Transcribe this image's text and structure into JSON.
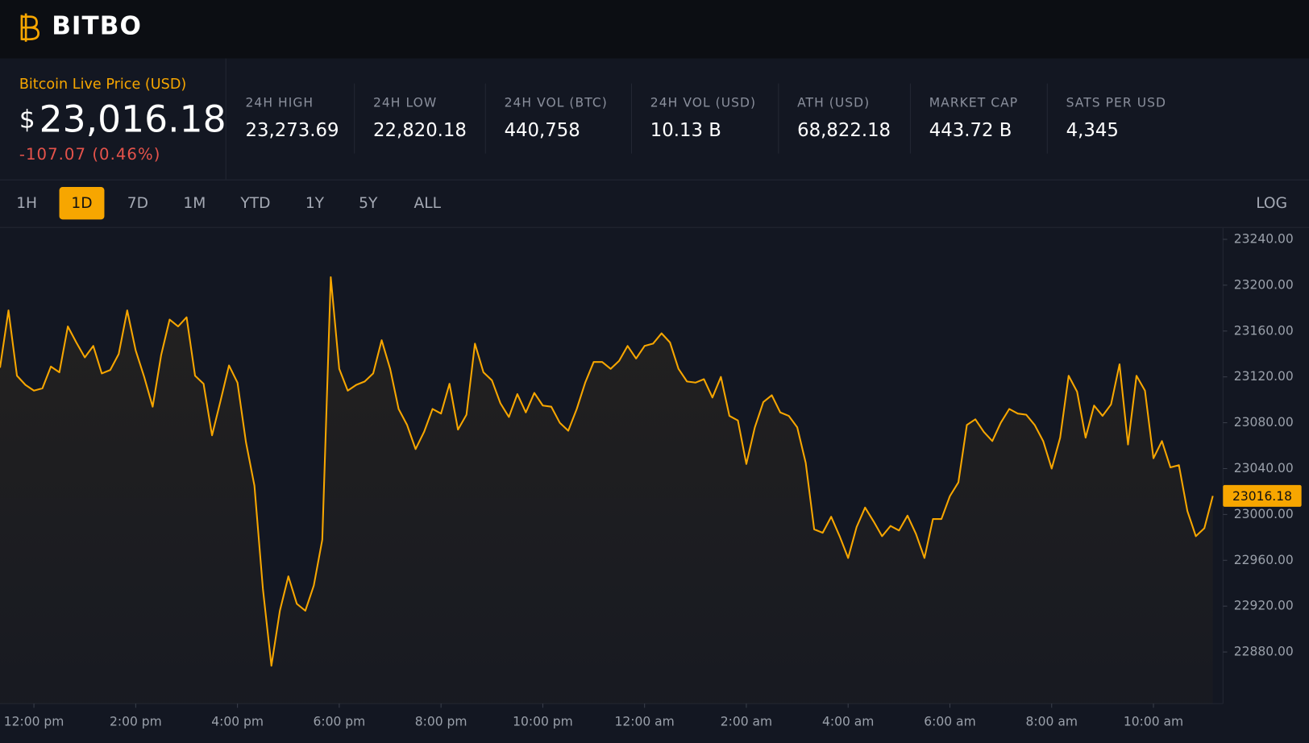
{
  "header": {
    "logo": "BITBO"
  },
  "price": {
    "label": "Bitcoin Live Price (USD)",
    "currency": "$",
    "value": "23,016.18",
    "change": "-107.07 (0.46%)"
  },
  "stats": [
    {
      "label": "24H HIGH",
      "value": "23,273.69"
    },
    {
      "label": "24H LOW",
      "value": "22,820.18"
    },
    {
      "label": "24H VOL (BTC)",
      "value": "440,758"
    },
    {
      "label": "24H VOL (USD)",
      "value": "10.13 B"
    },
    {
      "label": "ATH (USD)",
      "value": "68,822.18"
    },
    {
      "label": "MARKET CAP",
      "value": "443.72 B"
    },
    {
      "label": "SATS PER USD",
      "value": "4,345"
    }
  ],
  "timeframes": {
    "options": [
      "1H",
      "1D",
      "7D",
      "1M",
      "YTD",
      "1Y",
      "5Y",
      "ALL"
    ],
    "active": "1D",
    "scale_toggle": "LOG"
  },
  "chart_data": {
    "type": "line",
    "color": "#f7a600",
    "grid": false,
    "current_price": 23016.18,
    "x": [
      -40,
      -30,
      -20,
      -10,
      0,
      10,
      20,
      30,
      40,
      50,
      60,
      70,
      80,
      90,
      100,
      110,
      120,
      130,
      140,
      150,
      160,
      170,
      180,
      190,
      200,
      210,
      220,
      230,
      240,
      250,
      260,
      270,
      280,
      290,
      300,
      310,
      320,
      330,
      340,
      350,
      360,
      370,
      380,
      390,
      400,
      410,
      420,
      430,
      440,
      450,
      460,
      470,
      480,
      490,
      500,
      510,
      520,
      530,
      540,
      550,
      560,
      570,
      580,
      590,
      600,
      610,
      620,
      630,
      640,
      650,
      660,
      670,
      680,
      690,
      700,
      710,
      720,
      730,
      740,
      750,
      760,
      770,
      780,
      790,
      800,
      810,
      820,
      830,
      840,
      850,
      860,
      870,
      880,
      890,
      900,
      910,
      920,
      930,
      940,
      950,
      960,
      970,
      980,
      990,
      1000,
      1010,
      1020,
      1030,
      1040,
      1050,
      1060,
      1070,
      1080,
      1090,
      1100,
      1110,
      1120,
      1130,
      1140,
      1150,
      1160,
      1170,
      1180,
      1190,
      1200,
      1210,
      1220,
      1230,
      1240,
      1250,
      1260,
      1270,
      1280,
      1290,
      1300,
      1310,
      1320,
      1330,
      1340,
      1350,
      1360,
      1370,
      1380,
      1390
    ],
    "series": [
      {
        "name": "BTC",
        "color": "#f7a600",
        "values": [
          23128,
          23178,
          23121,
          23113,
          23108,
          23110,
          23129,
          23124,
          23164,
          23150,
          23137,
          23147,
          23123,
          23126,
          23140,
          23178,
          23143,
          23120,
          23094,
          23139,
          23170,
          23164,
          23172,
          23121,
          23114,
          23069,
          23099,
          23130,
          23115,
          23063,
          23025,
          22935,
          22868,
          22916,
          22946,
          22922,
          22916,
          22938,
          22978,
          23207,
          23127,
          23108,
          23113,
          23116,
          23123,
          23152,
          23127,
          23092,
          23078,
          23057,
          23072,
          23092,
          23088,
          23114,
          23074,
          23087,
          23149,
          23124,
          23117,
          23097,
          23085,
          23105,
          23089,
          23106,
          23095,
          23094,
          23080,
          23073,
          23092,
          23115,
          23133,
          23133,
          23127,
          23134,
          23147,
          23136,
          23147,
          23149,
          23158,
          23150,
          23127,
          23116,
          23115,
          23118,
          23102,
          23120,
          23086,
          23082,
          23044,
          23076,
          23098,
          23104,
          23089,
          23086,
          23076,
          23045,
          22987,
          22984,
          22998,
          22981,
          22962,
          22989,
          23006,
          22994,
          22981,
          22990,
          22986,
          22999,
          22983,
          22962,
          22996,
          22996,
          23016,
          23028,
          23078,
          23083,
          23072,
          23064,
          23080,
          23092,
          23088,
          23087,
          23078,
          23064,
          23040,
          23067,
          23121,
          23107,
          23067,
          23095,
          23086,
          23096,
          23131,
          23061,
          23121,
          23108,
          23049,
          23064,
          23041,
          23043,
          23003,
          22981,
          22988,
          23016.18
        ]
      }
    ],
    "xlim": [
      -40,
      1402
    ],
    "xticks": [
      {
        "value": 0,
        "label": "12:00 pm"
      },
      {
        "value": 120,
        "label": "2:00 pm"
      },
      {
        "value": 240,
        "label": "4:00 pm"
      },
      {
        "value": 360,
        "label": "6:00 pm"
      },
      {
        "value": 480,
        "label": "8:00 pm"
      },
      {
        "value": 600,
        "label": "10:00 pm"
      },
      {
        "value": 720,
        "label": "12:00 am"
      },
      {
        "value": 840,
        "label": "2:00 am"
      },
      {
        "value": 960,
        "label": "4:00 am"
      },
      {
        "value": 1080,
        "label": "6:00 am"
      },
      {
        "value": 1200,
        "label": "8:00 am"
      },
      {
        "value": 1320,
        "label": "10:00 am"
      }
    ],
    "ylim": [
      22835,
      23250
    ],
    "yticks": [
      {
        "value": 22880,
        "label": "22880.00"
      },
      {
        "value": 22920,
        "label": "22920.00"
      },
      {
        "value": 22960,
        "label": "22960.00"
      },
      {
        "value": 23000,
        "label": "23000.00"
      },
      {
        "value": 23040,
        "label": "23040.00"
      },
      {
        "value": 23080,
        "label": "23080.00"
      },
      {
        "value": 23120,
        "label": "23120.00"
      },
      {
        "value": 23160,
        "label": "23160.00"
      },
      {
        "value": 23200,
        "label": "23200.00"
      },
      {
        "value": 23240,
        "label": "23240.00"
      }
    ]
  }
}
